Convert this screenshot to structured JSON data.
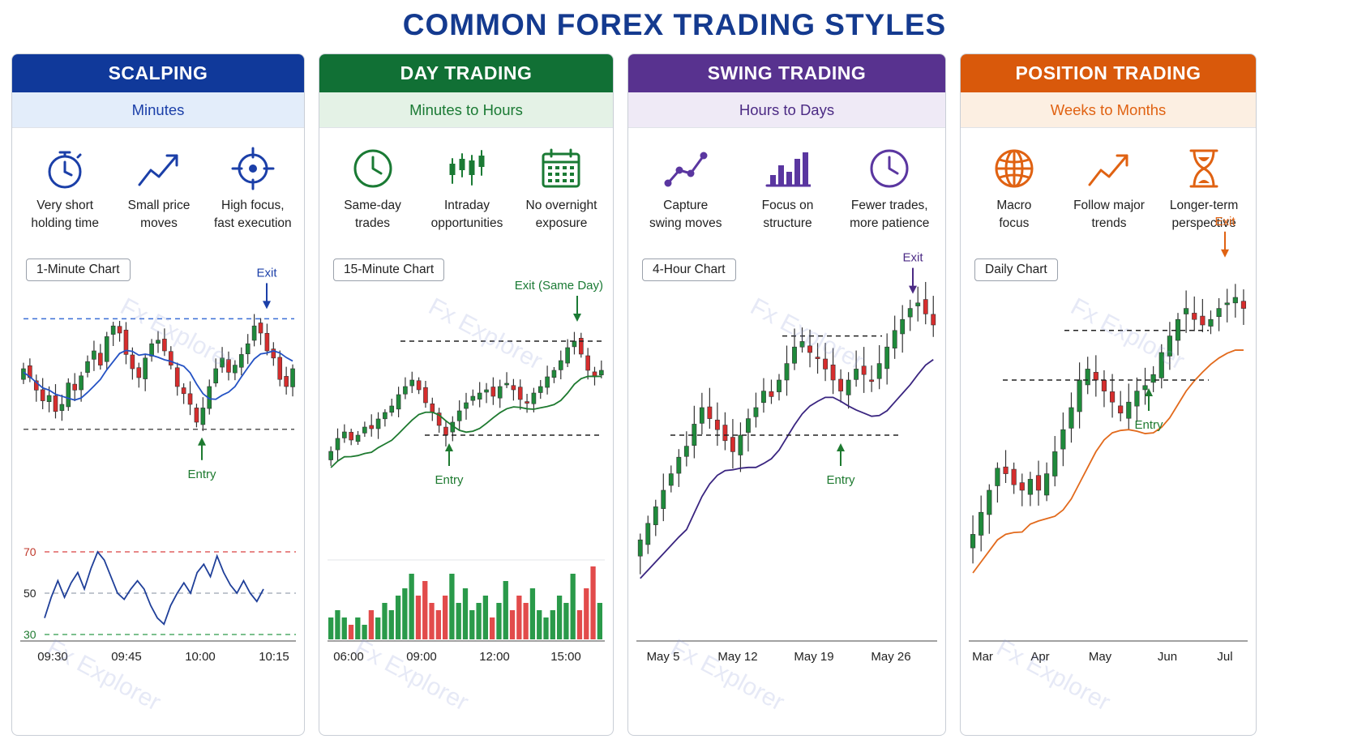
{
  "title": "COMMON FOREX TRADING STYLES",
  "watermark": "Fx Explorer",
  "colors": {
    "up": "#1f8a3b",
    "down": "#d62d2d",
    "grid": "#b8c0cc"
  },
  "panels": [
    {
      "name": "SCALPING",
      "timeframe": "Minutes",
      "header_color": "#10399a",
      "sub_bg": "#e3edfa",
      "accent": "#1b3fa8",
      "icon_color": "#1b3fa8",
      "features": [
        {
          "icon": "stopwatch-icon",
          "label": "Very short\nholding time"
        },
        {
          "icon": "trend-up-arrow-icon",
          "label": "Small price\nmoves"
        },
        {
          "icon": "crosshair-icon",
          "label": "High focus,\nfast execution"
        }
      ],
      "chart_label": "1-Minute Chart"
    },
    {
      "name": "DAY TRADING",
      "timeframe": "Minutes to Hours",
      "header_color": "#117035",
      "sub_bg": "#e4f2e6",
      "accent": "#1a7a34",
      "icon_color": "#1a7a34",
      "features": [
        {
          "icon": "clock-icon",
          "label": "Same-day\ntrades"
        },
        {
          "icon": "candlesticks-icon",
          "label": "Intraday\nopportunities"
        },
        {
          "icon": "calendar-icon",
          "label": "No overnight\nexposure"
        }
      ],
      "chart_label": "15-Minute Chart"
    },
    {
      "name": "SWING TRADING",
      "timeframe": "Hours to Days",
      "header_color": "#58328f",
      "sub_bg": "#efeaf6",
      "accent": "#4b2a84",
      "icon_color": "#5a36a0",
      "features": [
        {
          "icon": "line-points-icon",
          "label": "Capture\nswing moves"
        },
        {
          "icon": "bar-chart-icon",
          "label": "Focus on\nstructure"
        },
        {
          "icon": "clock-icon",
          "label": "Fewer trades,\nmore patience"
        }
      ],
      "chart_label": "4-Hour Chart"
    },
    {
      "name": "POSITION TRADING",
      "timeframe": "Weeks to Months",
      "header_color": "#d9590b",
      "sub_bg": "#fcefe2",
      "accent": "#e06212",
      "icon_color": "#e06212",
      "features": [
        {
          "icon": "globe-icon",
          "label": "Macro\nfocus"
        },
        {
          "icon": "trend-up-arrow-icon",
          "label": "Follow major\ntrends"
        },
        {
          "icon": "hourglass-icon",
          "label": "Longer-term\nperspective"
        }
      ],
      "chart_label": "Daily Chart"
    }
  ],
  "chart_data": [
    {
      "type": "candlestick",
      "title": "1-Minute Chart",
      "x_ticks": [
        "09:30",
        "09:45",
        "10:00",
        "10:15"
      ],
      "closes": [
        60,
        55,
        48,
        42,
        45,
        36,
        40,
        52,
        48,
        56,
        64,
        70,
        62,
        78,
        84,
        80,
        68,
        60,
        55,
        66,
        74,
        76,
        70,
        62,
        50,
        46,
        40,
        30,
        38,
        50,
        60,
        66,
        58,
        62,
        68,
        74,
        84,
        80,
        70,
        66,
        54,
        50,
        60
      ],
      "levels": {
        "resistance": 88,
        "support": 26
      },
      "moving_average": "blue",
      "annotations": [
        {
          "text": "Exit",
          "at": "resistance"
        },
        {
          "text": "Entry",
          "at": "support"
        }
      ],
      "rsi": {
        "levels": [
          "70",
          "50",
          "30"
        ],
        "values": [
          38,
          48,
          56,
          48,
          55,
          60,
          52,
          62,
          70,
          66,
          58,
          50,
          47,
          52,
          56,
          52,
          44,
          38,
          35,
          44,
          50,
          55,
          50,
          60,
          64,
          58,
          68,
          60,
          54,
          50,
          56,
          50,
          46,
          52
        ]
      }
    },
    {
      "type": "candlestick",
      "title": "15-Minute Chart",
      "x_ticks": [
        "06:00",
        "09:00",
        "12:00",
        "15:00"
      ],
      "closes": [
        20,
        28,
        32,
        27,
        30,
        35,
        34,
        40,
        44,
        48,
        55,
        60,
        64,
        58,
        50,
        44,
        36,
        30,
        38,
        45,
        50,
        54,
        56,
        58,
        54,
        60,
        62,
        58,
        52,
        50,
        56,
        60,
        66,
        70,
        76,
        84,
        88,
        80,
        70,
        66,
        70
      ],
      "levels": {
        "resistance": 88,
        "support": 30
      },
      "moving_average": "green",
      "annotations": [
        {
          "text": "Exit (Same Day)",
          "at": "resistance"
        },
        {
          "text": "Entry",
          "at": "support"
        }
      ],
      "volume": [
        3,
        4,
        3,
        2,
        3,
        2,
        4,
        3,
        5,
        4,
        6,
        7,
        9,
        6,
        8,
        5,
        4,
        6,
        9,
        5,
        7,
        4,
        5,
        6,
        3,
        5,
        8,
        4,
        6,
        5,
        7,
        4,
        3,
        4,
        6,
        5,
        9,
        4,
        7,
        10,
        5
      ]
    },
    {
      "type": "candlestick",
      "title": "4-Hour Chart",
      "x_ticks": [
        "May 5",
        "May 12",
        "May 19",
        "May 26"
      ],
      "closes": [
        12,
        18,
        24,
        30,
        36,
        42,
        46,
        54,
        60,
        56,
        52,
        48,
        44,
        50,
        56,
        60,
        66,
        64,
        70,
        76,
        82,
        84,
        80,
        78,
        74,
        70,
        66,
        70,
        74,
        72,
        70,
        76,
        82,
        88,
        92,
        96,
        98,
        94,
        90
      ],
      "levels": {
        "resistance": 86,
        "support": 50
      },
      "moving_average": "purple",
      "annotations": [
        {
          "text": "Exit",
          "at": "top"
        },
        {
          "text": "Entry",
          "at": "support"
        }
      ]
    },
    {
      "type": "candlestick",
      "title": "Daily Chart",
      "x_ticks": [
        "Mar",
        "Apr",
        "May",
        "Jun",
        "Jul"
      ],
      "closes": [
        14,
        22,
        30,
        38,
        36,
        32,
        30,
        34,
        30,
        36,
        44,
        52,
        60,
        70,
        74,
        70,
        66,
        62,
        58,
        62,
        66,
        68,
        72,
        80,
        86,
        92,
        96,
        92,
        90,
        92,
        96,
        98,
        100,
        96
      ],
      "levels": {
        "resistance": 88,
        "support": 70
      },
      "moving_average": "orange",
      "annotations": [
        {
          "text": "Exit",
          "at": "top"
        },
        {
          "text": "Entry",
          "at": "support"
        }
      ]
    }
  ]
}
